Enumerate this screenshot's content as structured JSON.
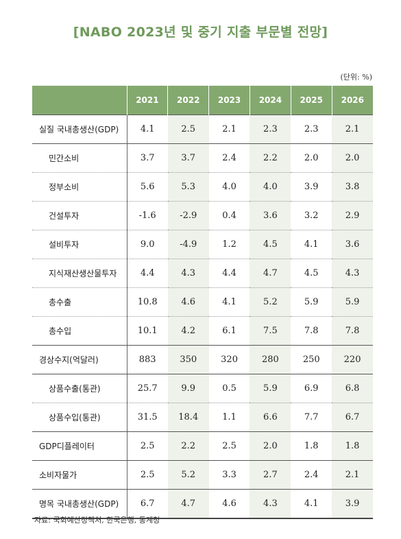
{
  "title": "[NABO 2023년 및 중기 지출 부문별 전망]",
  "unit": "(단위: %)",
  "source": "자료: 국회예산정책처, 한국은행, 통계청",
  "table": {
    "years": [
      "2021",
      "2022",
      "2023",
      "2024",
      "2025",
      "2026"
    ],
    "rows": [
      {
        "label": "실질 국내총생산(GDP)",
        "values": [
          "4.1",
          "2.5",
          "2.1",
          "2.3",
          "2.3",
          "2.1"
        ]
      },
      {
        "label": "민간소비",
        "values": [
          "3.7",
          "3.7",
          "2.4",
          "2.2",
          "2.0",
          "2.0"
        ]
      },
      {
        "label": "정부소비",
        "values": [
          "5.6",
          "5.3",
          "4.0",
          "4.0",
          "3.9",
          "3.8"
        ]
      },
      {
        "label": "건설투자",
        "values": [
          "-1.6",
          "-2.9",
          "0.4",
          "3.6",
          "3.2",
          "2.9"
        ]
      },
      {
        "label": "설비투자",
        "values": [
          "9.0",
          "-4.9",
          "1.2",
          "4.5",
          "4.1",
          "3.6"
        ]
      },
      {
        "label": "지식재산생산물투자",
        "values": [
          "4.4",
          "4.3",
          "4.4",
          "4.7",
          "4.5",
          "4.3"
        ]
      },
      {
        "label": "총수출",
        "values": [
          "10.8",
          "4.6",
          "4.1",
          "5.2",
          "5.9",
          "5.9"
        ]
      },
      {
        "label": "총수입",
        "values": [
          "10.1",
          "4.2",
          "6.1",
          "7.5",
          "7.8",
          "7.8"
        ]
      },
      {
        "label": "경상수지(억달러)",
        "values": [
          "883",
          "350",
          "320",
          "280",
          "250",
          "220"
        ]
      },
      {
        "label": "상품수출(통관)",
        "values": [
          "25.7",
          "9.9",
          "0.5",
          "5.9",
          "6.9",
          "6.8"
        ]
      },
      {
        "label": "상품수입(통관)",
        "values": [
          "31.5",
          "18.4",
          "1.1",
          "6.6",
          "7.7",
          "6.7"
        ]
      },
      {
        "label": "GDP디플레이터",
        "values": [
          "2.5",
          "2.2",
          "2.5",
          "2.0",
          "1.8",
          "1.8"
        ]
      },
      {
        "label": "소비자물가",
        "values": [
          "2.5",
          "5.2",
          "3.3",
          "2.7",
          "2.4",
          "2.1"
        ]
      },
      {
        "label": "명목 국내총생산(GDP)",
        "values": [
          "6.7",
          "4.7",
          "4.6",
          "4.3",
          "4.1",
          "3.9"
        ]
      }
    ]
  }
}
